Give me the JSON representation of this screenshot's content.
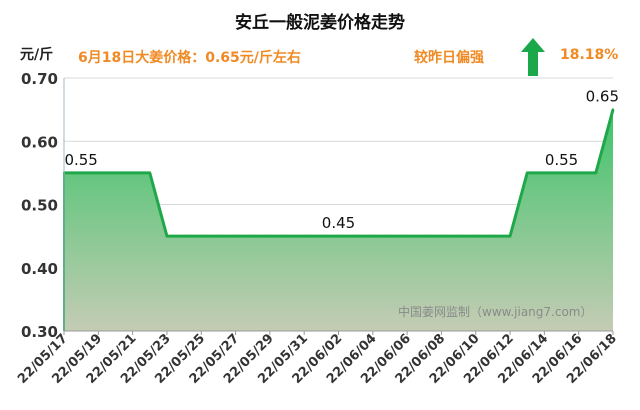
{
  "header": {
    "title": "安丘一般泥姜价格走势",
    "unit": "元/斤",
    "price_text": "6月18日大姜价格：0.65元/斤左右",
    "compare_text": "较昨日偏强",
    "change_pct": "18.18%",
    "trend_icon": "up-arrow-icon",
    "trend_color": "#1aa84a"
  },
  "watermark": "中国姜网监制（www.jiang7.com）",
  "chart_data": {
    "type": "area",
    "title": "安丘一般泥姜价格走势",
    "ylabel": "元/斤",
    "xlabel": "",
    "ylim": [
      0.3,
      0.7
    ],
    "yticks": [
      0.3,
      0.4,
      0.5,
      0.6,
      0.7
    ],
    "ytick_labels": [
      "0.30",
      "0.40",
      "0.50",
      "0.60",
      "0.70"
    ],
    "x_tick_labels": [
      "22/05/17",
      "22/05/19",
      "22/05/21",
      "22/05/23",
      "22/05/25",
      "22/05/27",
      "22/05/29",
      "22/05/31",
      "22/06/02",
      "22/06/04",
      "22/06/06",
      "22/06/08",
      "22/06/10",
      "22/06/12",
      "22/06/14",
      "22/06/16",
      "22/06/18"
    ],
    "series": [
      {
        "x": [
          "22/05/17",
          "22/05/18",
          "22/05/19",
          "22/05/20",
          "22/05/21",
          "22/05/22",
          "22/05/23",
          "22/05/24",
          "22/05/25",
          "22/05/26",
          "22/05/27",
          "22/05/28",
          "22/05/29",
          "22/05/30",
          "22/05/31",
          "22/06/01",
          "22/06/02",
          "22/06/03",
          "22/06/04",
          "22/06/05",
          "22/06/06",
          "22/06/07",
          "22/06/08",
          "22/06/09",
          "22/06/10",
          "22/06/11",
          "22/06/12",
          "22/06/13",
          "22/06/14",
          "22/06/15",
          "22/06/16",
          "22/06/17",
          "22/06/18"
        ],
        "values": [
          0.55,
          0.55,
          0.55,
          0.55,
          0.55,
          0.55,
          0.45,
          0.45,
          0.45,
          0.45,
          0.45,
          0.45,
          0.45,
          0.45,
          0.45,
          0.45,
          0.45,
          0.45,
          0.45,
          0.45,
          0.45,
          0.45,
          0.45,
          0.45,
          0.45,
          0.45,
          0.45,
          0.55,
          0.55,
          0.55,
          0.55,
          0.55,
          0.65
        ]
      }
    ],
    "data_labels": [
      {
        "x": "22/05/18",
        "text": "0.55"
      },
      {
        "x": "22/06/02",
        "text": "0.45"
      },
      {
        "x": "22/06/15",
        "text": "0.55"
      },
      {
        "x": "22/06/18",
        "text": "0.65"
      }
    ],
    "grid": true,
    "line_color": "#1fa84a",
    "fill_top_color": "#3ec46a",
    "fill_bottom_color": "#c4ccb4",
    "grid_color": "#d9d9d9",
    "axis_color": "#9fb8c8"
  }
}
